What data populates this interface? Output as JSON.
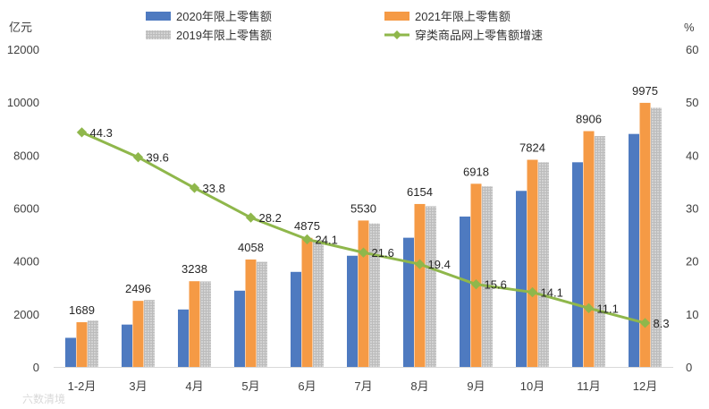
{
  "chart_data": {
    "type": "bar",
    "left_axis_unit": "亿元",
    "right_axis_unit": "%",
    "categories": [
      "1-2月",
      "3月",
      "4月",
      "5月",
      "6月",
      "7月",
      "8月",
      "9月",
      "10月",
      "11月",
      "12月"
    ],
    "ylim_left": [
      0,
      12000
    ],
    "yticks_left": [
      0,
      2000,
      4000,
      6000,
      8000,
      10000,
      12000
    ],
    "ylim_right": [
      0,
      60
    ],
    "yticks_right": [
      0,
      10,
      20,
      30,
      40,
      50,
      60
    ],
    "series": [
      {
        "name": "2020年限上零售额",
        "type": "bar",
        "axis": "left",
        "color": "#4e7ac0",
        "values": [
          1100,
          1600,
          2170,
          2880,
          3590,
          4200,
          4880,
          5680,
          6650,
          7730,
          8800
        ]
      },
      {
        "name": "2021年限上零售额",
        "type": "bar",
        "axis": "left",
        "color": "#f59a45",
        "labels_shown": true,
        "values": [
          1689,
          2496,
          3238,
          4058,
          4875,
          5530,
          6154,
          6918,
          7824,
          8906,
          9975
        ]
      },
      {
        "name": "2019年限上零售额",
        "type": "bar",
        "axis": "left",
        "color": "#a8a8a8",
        "pattern": "dotted",
        "values": [
          1750,
          2530,
          3230,
          3970,
          4800,
          5420,
          6070,
          6820,
          7730,
          8720,
          9790
        ]
      },
      {
        "name": "穿类商品网上零售额增速",
        "type": "line",
        "axis": "right",
        "color": "#8fb74b",
        "labels_shown": true,
        "values": [
          44.3,
          39.6,
          33.8,
          28.2,
          24.1,
          21.6,
          19.4,
          15.6,
          14.1,
          11.1,
          8.3
        ],
        "value_labels": [
          "44.3",
          "39.6",
          "33.8",
          "28.2",
          "24.1",
          "21.6",
          "19.4",
          "15.6",
          "14.1",
          "11.1",
          "8.3"
        ]
      }
    ],
    "grid": false,
    "legend_position": "top"
  },
  "watermark": "六数清境"
}
